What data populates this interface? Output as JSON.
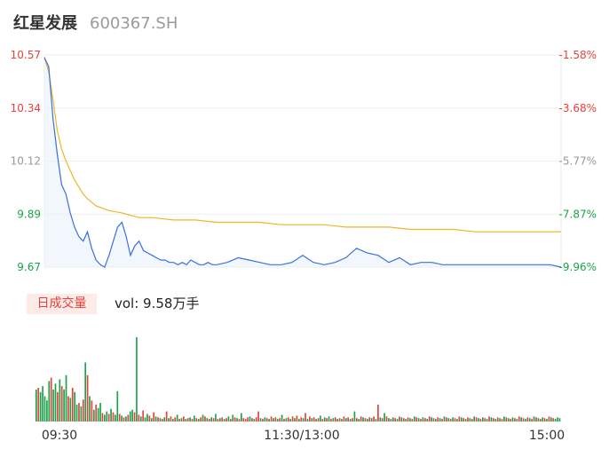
{
  "header": {
    "name": "红星发展",
    "code": "600367.SH"
  },
  "colors": {
    "up": "#e8403a",
    "down": "#1aa34a",
    "flat": "#999999",
    "price_line": "#3b6fe0",
    "avg_line": "#f0b429",
    "grid": "#eeeeee"
  },
  "volume_panel": {
    "badge": "日成交量",
    "vol_text": "vol: 9.58万手"
  },
  "chart_data": [
    {
      "type": "line",
      "ylim": [
        9.67,
        10.57
      ],
      "y_ticks_left": [
        "10.57",
        "10.34",
        "10.12",
        "9.89",
        "9.67"
      ],
      "y_ticks_right": [
        "-1.58%",
        "-3.68%",
        "-5.77%",
        "-7.87%",
        "-9.96%"
      ],
      "x_ticks": [
        "09:30",
        "11:30/13:00",
        "15:00"
      ],
      "grid": true,
      "series": [
        {
          "name": "",
          "kind": "price",
          "x": [
            0,
            2,
            4,
            6,
            8,
            10,
            12,
            14,
            16,
            18,
            20,
            22,
            24,
            26,
            28,
            30,
            32,
            34,
            36,
            38,
            40,
            42,
            44,
            46,
            48,
            50,
            52,
            54,
            56,
            58,
            60,
            62,
            64,
            66,
            68,
            70,
            72,
            74,
            76,
            78,
            80,
            85,
            90,
            95,
            100,
            105,
            110,
            115,
            120,
            125,
            130,
            135,
            140,
            145,
            150,
            155,
            160,
            165,
            170,
            175,
            180,
            185,
            190,
            195,
            200,
            205,
            210,
            215,
            220,
            225,
            230,
            235,
            240
          ],
          "values": [
            10.56,
            10.52,
            10.3,
            10.15,
            10.02,
            9.98,
            9.9,
            9.84,
            9.8,
            9.78,
            9.82,
            9.75,
            9.7,
            9.68,
            9.67,
            9.72,
            9.78,
            9.84,
            9.86,
            9.8,
            9.72,
            9.76,
            9.78,
            9.74,
            9.73,
            9.72,
            9.71,
            9.7,
            9.7,
            9.69,
            9.69,
            9.68,
            9.69,
            9.68,
            9.7,
            9.69,
            9.68,
            9.68,
            9.69,
            9.68,
            9.68,
            9.69,
            9.71,
            9.7,
            9.69,
            9.68,
            9.68,
            9.69,
            9.72,
            9.69,
            9.68,
            9.69,
            9.71,
            9.75,
            9.73,
            9.72,
            9.69,
            9.71,
            9.68,
            9.69,
            9.69,
            9.68,
            9.68,
            9.68,
            9.68,
            9.68,
            9.68,
            9.68,
            9.68,
            9.68,
            9.68,
            9.68,
            9.67
          ]
        },
        {
          "name": "",
          "kind": "average",
          "x": [
            0,
            2,
            4,
            6,
            8,
            10,
            12,
            14,
            16,
            18,
            20,
            24,
            30,
            36,
            40,
            44,
            50,
            60,
            70,
            80,
            90,
            100,
            110,
            120,
            130,
            140,
            150,
            160,
            170,
            180,
            190,
            200,
            210,
            220,
            230,
            240
          ],
          "values": [
            10.56,
            10.5,
            10.38,
            10.25,
            10.17,
            10.12,
            10.08,
            10.04,
            10.01,
            9.98,
            9.96,
            9.93,
            9.91,
            9.9,
            9.89,
            9.88,
            9.88,
            9.87,
            9.87,
            9.86,
            9.86,
            9.86,
            9.85,
            9.85,
            9.85,
            9.84,
            9.84,
            9.84,
            9.83,
            9.83,
            9.83,
            9.82,
            9.82,
            9.82,
            9.82,
            9.82
          ]
        }
      ]
    },
    {
      "type": "bar",
      "title": "",
      "ylim": [
        0,
        100
      ],
      "values": [
        38,
        40,
        35,
        42,
        30,
        25,
        48,
        52,
        38,
        45,
        35,
        50,
        42,
        38,
        55,
        30,
        28,
        40,
        35,
        20,
        22,
        18,
        26,
        70,
        55,
        30,
        25,
        14,
        20,
        16,
        22,
        10,
        8,
        12,
        9,
        15,
        11,
        8,
        36,
        9,
        7,
        5,
        6,
        8,
        12,
        14,
        11,
        100,
        8,
        6,
        13,
        5,
        9,
        7,
        4,
        11,
        6,
        5,
        4,
        3,
        5,
        12,
        4,
        6,
        3,
        5,
        8,
        3,
        4,
        6,
        3,
        4,
        5,
        3,
        7,
        4,
        3,
        5,
        8,
        6,
        4,
        3,
        5,
        4,
        9,
        3,
        4,
        5,
        3,
        4,
        6,
        3,
        8,
        5,
        4,
        3,
        10,
        4,
        3,
        5,
        6,
        4,
        3,
        5,
        12,
        4,
        3,
        5,
        4,
        3,
        6,
        4,
        5,
        3,
        4,
        8,
        3,
        4,
        5,
        3,
        6,
        4,
        7,
        3,
        5,
        4,
        10,
        3,
        6,
        4,
        5,
        3,
        4,
        7,
        3,
        5,
        4,
        6,
        3,
        4,
        5,
        3,
        4,
        3,
        6,
        4,
        5,
        3,
        4,
        12,
        4,
        3,
        6,
        5,
        4,
        3,
        5,
        4,
        6,
        3,
        20,
        5,
        4,
        10,
        6,
        4,
        3,
        5,
        4,
        3,
        6,
        5,
        4,
        3,
        5,
        4,
        3,
        6,
        5,
        4,
        3,
        5,
        4,
        3,
        6,
        5,
        4,
        3,
        5,
        4,
        3,
        6,
        5,
        4,
        3,
        5,
        4,
        3,
        6,
        5,
        4,
        3,
        5,
        4,
        3,
        6,
        5,
        4,
        3,
        5,
        4,
        3,
        6,
        5,
        4,
        3,
        5,
        4,
        3,
        6,
        5,
        4,
        3,
        5,
        4,
        3,
        6,
        5,
        4,
        3,
        5,
        4,
        3,
        6,
        5,
        4,
        3,
        5,
        4,
        3,
        6,
        5,
        4,
        3,
        5,
        4
      ],
      "bar_colors": [
        "down",
        "up",
        "down",
        "down",
        "down",
        "down",
        "down",
        "up",
        "down",
        "down",
        "up",
        "down",
        "up",
        "down",
        "down",
        "up",
        "down",
        "up",
        "down",
        "down",
        "up",
        "down",
        "up",
        "down",
        "up",
        "down",
        "up",
        "down",
        "up",
        "down",
        "down",
        "up",
        "down",
        "down",
        "up",
        "down",
        "up",
        "down",
        "down",
        "up",
        "down",
        "up",
        "down",
        "up",
        "down",
        "down",
        "up",
        "down",
        "up",
        "down",
        "up",
        "down",
        "down",
        "up",
        "down",
        "up",
        "down",
        "up",
        "down",
        "up",
        "down",
        "up",
        "down",
        "up",
        "down",
        "up",
        "down",
        "up",
        "down",
        "up",
        "down",
        "up",
        "down",
        "up",
        "down",
        "up",
        "down",
        "up",
        "down",
        "up",
        "down",
        "up",
        "down",
        "up",
        "down",
        "up",
        "down",
        "up",
        "down",
        "up",
        "down",
        "up",
        "down",
        "up",
        "down",
        "up",
        "down",
        "up",
        "up",
        "up",
        "down",
        "up",
        "down",
        "up",
        "up",
        "down",
        "up",
        "down",
        "up",
        "down",
        "up",
        "down",
        "up",
        "down",
        "up",
        "down",
        "up",
        "down",
        "up",
        "down",
        "up",
        "down",
        "up",
        "down",
        "up",
        "down",
        "up",
        "down",
        "up",
        "down",
        "up",
        "down",
        "up",
        "down",
        "up",
        "down",
        "up",
        "down",
        "up",
        "down",
        "up",
        "down",
        "up",
        "down",
        "up",
        "down",
        "up",
        "down",
        "up",
        "down",
        "up",
        "down",
        "up",
        "down",
        "up",
        "down",
        "up",
        "down",
        "up",
        "down",
        "up",
        "down",
        "up",
        "down",
        "up",
        "down",
        "up",
        "down",
        "up",
        "down",
        "up",
        "down",
        "up",
        "down",
        "up",
        "down",
        "up",
        "down",
        "up",
        "down",
        "up",
        "down",
        "up",
        "down",
        "up",
        "down",
        "up",
        "down",
        "up",
        "down",
        "up",
        "down",
        "up",
        "down",
        "up",
        "down",
        "up",
        "down",
        "up",
        "down",
        "up",
        "down",
        "up",
        "down",
        "up",
        "down",
        "up",
        "down",
        "up",
        "down",
        "up",
        "down",
        "up",
        "down",
        "up",
        "down",
        "up",
        "down",
        "up",
        "down",
        "up",
        "down",
        "up",
        "down",
        "up",
        "down",
        "up",
        "down",
        "up",
        "down",
        "up",
        "down",
        "up",
        "down",
        "up",
        "down",
        "up",
        "down",
        "up",
        "down",
        "up",
        "down",
        "up",
        "down"
      ]
    }
  ]
}
